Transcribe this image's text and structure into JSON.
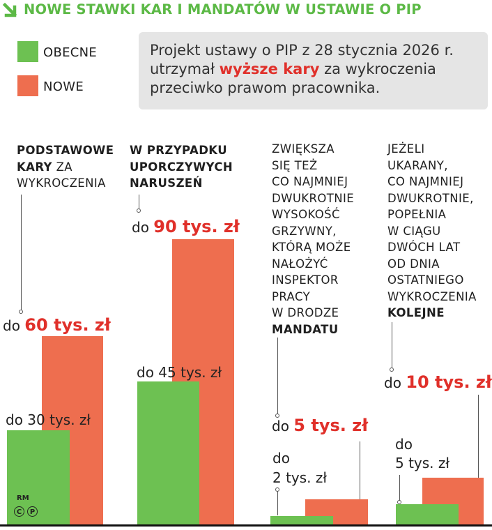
{
  "header": {
    "title": "NOWE STAWKI KAR I MANDATÓW W USTAWIE O PIP",
    "arrow_icon": "arrow-down-right-icon"
  },
  "legend": [
    {
      "label": "OBECNE",
      "color": "#6dc152"
    },
    {
      "label": "NOWE",
      "color": "#ee6e4f"
    }
  ],
  "info": {
    "line1": "Projekt ustawy o PIP z 28 stycznia 2026 r.",
    "line2_pre": "utrzymał ",
    "line2_em": "wyższe kary",
    "line2_post": " za wykroczenia",
    "line3": "przeciwko prawom pracownika."
  },
  "groups": [
    {
      "desc": [
        {
          "t": "PODSTAWOWE",
          "b": true
        },
        {
          "t": "KARY ZA",
          "b": true,
          "split": [
            "KARY",
            " ZA"
          ]
        },
        {
          "t": "WYKROCZENIA",
          "b": false
        }
      ],
      "current_caption": "do 30 tys. zł",
      "new_prefix": "do ",
      "new_amount": "60 tys. zł"
    },
    {
      "desc": [
        {
          "t": "W PRZYPADKU",
          "b": true
        },
        {
          "t": "UPORCZYWYCH",
          "b": true
        },
        {
          "t": "NARUSZEŃ",
          "b": true
        }
      ],
      "current_caption": "do 45 tys. zł",
      "new_prefix": "do ",
      "new_amount": "90 tys. zł"
    },
    {
      "desc": [
        {
          "t": "ZWIĘKSZA",
          "b": false
        },
        {
          "t": "SIĘ TEŻ",
          "b": false
        },
        {
          "t": "CO NAJMNIEJ",
          "b": false
        },
        {
          "t": "DWUKROTNIE",
          "b": false
        },
        {
          "t": "WYSOKOŚĆ",
          "b": false
        },
        {
          "t": "GRZYWNY,",
          "b": false
        },
        {
          "t": "KTÓRĄ MOŻE",
          "b": false
        },
        {
          "t": "NAŁOŻYĆ",
          "b": false
        },
        {
          "t": "INSPEKTOR",
          "b": false
        },
        {
          "t": "PRACY",
          "b": false
        },
        {
          "t": "W DRODZE",
          "b": false
        },
        {
          "t": "MANDATU",
          "b": true
        }
      ],
      "current_caption_l1": "do",
      "current_caption_l2": "2 tys. zł",
      "new_prefix": "do ",
      "new_amount": "5 tys. zł"
    },
    {
      "desc": [
        {
          "t": "JEŻELI",
          "b": false
        },
        {
          "t": "UKARANY,",
          "b": false
        },
        {
          "t": "CO NAJMNIEJ",
          "b": false
        },
        {
          "t": "DWUKROTNIE,",
          "b": false
        },
        {
          "t": "POPEŁNIA",
          "b": false
        },
        {
          "t": "W CIĄGU",
          "b": false
        },
        {
          "t": "DWÓCH LAT",
          "b": false
        },
        {
          "t": "OD DNIA",
          "b": false
        },
        {
          "t": "OSTATNIEGO",
          "b": false
        },
        {
          "t": "WYKROCZENIA",
          "b": false
        },
        {
          "t": "KOLEJNE",
          "b": true
        }
      ],
      "current_caption_l1": "do",
      "current_caption_l2": "5 tys. zł",
      "new_prefix": "do ",
      "new_amount": "10 tys. zł"
    }
  ],
  "chart_data": {
    "type": "bar",
    "categories": [
      "PODSTAWOWE KARY ZA WYKROCZENIA",
      "W PRZYPADKU UPORCZYWYCH NARUSZEŃ",
      "MANDAT",
      "KOLEJNE WYKROCZENIE W CIĄGU DWÓCH LAT"
    ],
    "series": [
      {
        "name": "OBECNE",
        "values": [
          30,
          45,
          2,
          5
        ],
        "color": "#6dc152"
      },
      {
        "name": "NOWE",
        "values": [
          60,
          90,
          5,
          10
        ],
        "color": "#ee6e4f"
      }
    ],
    "unit": "tys. zł",
    "title": "NOWE STAWKI KAR I MANDATÓW W USTAWIE O PIP"
  },
  "credits": {
    "author": "RM",
    "c": "C",
    "p": "P"
  }
}
